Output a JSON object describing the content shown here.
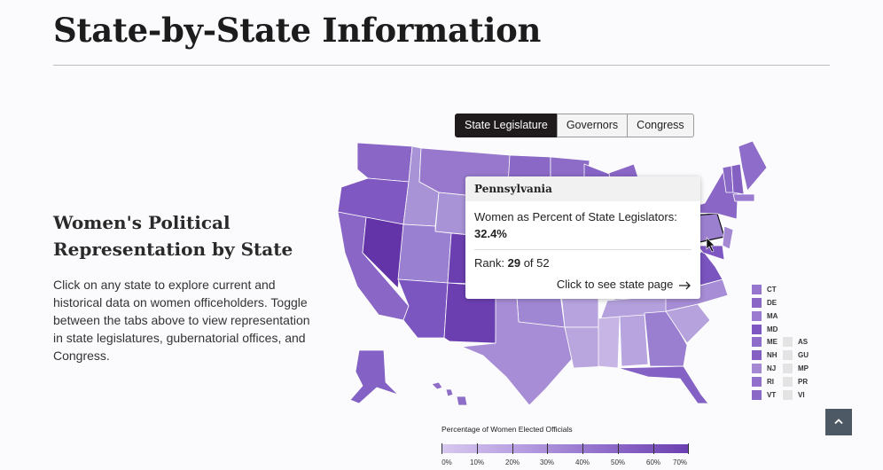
{
  "page": {
    "title": "State-by-State Information"
  },
  "intro": {
    "heading": "Women's Political Representation by State",
    "body": "Click on any state to explore current and historical data on women officeholders. Toggle between the tabs above to view representation in state legislatures, gubernatorial offices, and Congress."
  },
  "tabs": [
    {
      "label": "State Legislature",
      "active": true
    },
    {
      "label": "Governors",
      "active": false
    },
    {
      "label": "Congress",
      "active": false
    }
  ],
  "tooltip": {
    "state": "Pennsylvania",
    "metric_label": "Women as Percent of State Legislators:",
    "metric_value": "32.4%",
    "rank_label": "Rank:",
    "rank_value": "29",
    "rank_of": "of 52",
    "link_text": "Click to see state page",
    "link_icon": "arrow-right-icon"
  },
  "small_states": [
    {
      "code": "CT",
      "color": "#9575cd"
    },
    {
      "code": "DE",
      "color": "#8a67c6"
    },
    {
      "code": "MA",
      "color": "#9a7bd0"
    },
    {
      "code": "MD",
      "color": "#7e57c2"
    },
    {
      "code": "ME",
      "color": "#8e6cc9"
    },
    {
      "code": "NH",
      "color": "#8460c3"
    },
    {
      "code": "NJ",
      "color": "#a488d4"
    },
    {
      "code": "RI",
      "color": "#9070cb"
    },
    {
      "code": "VT",
      "color": "#8a68c6"
    }
  ],
  "territories": [
    {
      "code": "AS",
      "color": "#e3e3e3"
    },
    {
      "code": "GU",
      "color": "#e3e3e3"
    },
    {
      "code": "MP",
      "color": "#e3e3e3"
    },
    {
      "code": "PR",
      "color": "#e3e3e3"
    },
    {
      "code": "VI",
      "color": "#e3e3e3"
    }
  ],
  "legend": {
    "title": "Percentage of Women Elected Officials",
    "ticks": [
      "0%",
      "10%",
      "20%",
      "30%",
      "40%",
      "50%",
      "60%",
      "70%"
    ],
    "colors": [
      "#d7c8ef",
      "#6b3fb0"
    ]
  },
  "scroll_top": {
    "icon": "chevron-up-icon"
  }
}
